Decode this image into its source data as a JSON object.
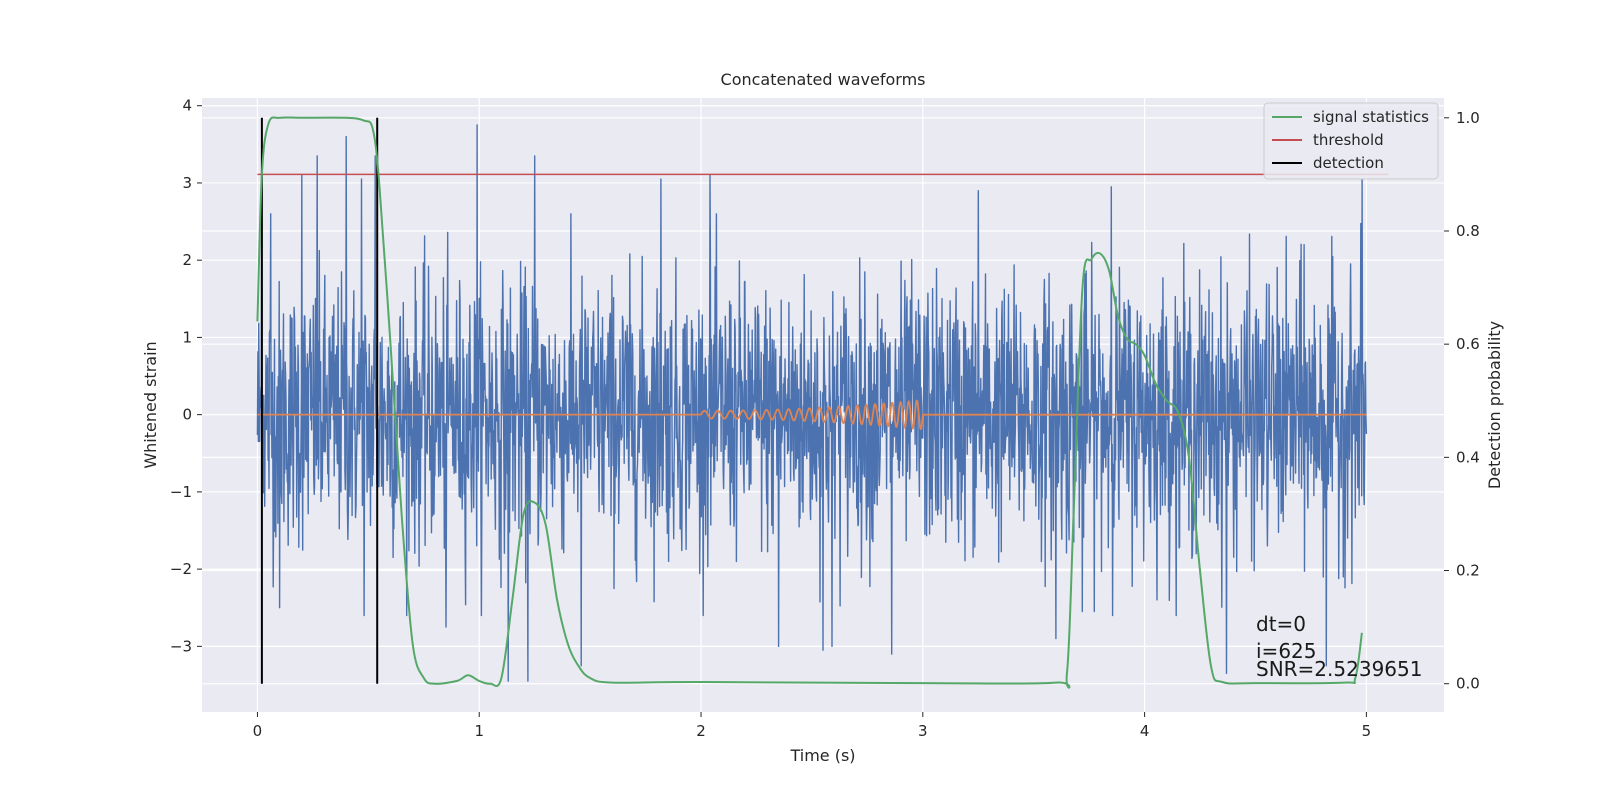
{
  "chart_data": {
    "type": "line",
    "title": "Concatenated waveforms",
    "xlabel": "Time (s)",
    "ylabel": "Whitened strain",
    "ylabel_right": "Detection probability",
    "xlim": [
      -0.25,
      5.35
    ],
    "ylim": [
      -3.85,
      4.1
    ],
    "ylim_right": [
      -0.05,
      1.035
    ],
    "x_ticks": [
      0,
      1,
      2,
      3,
      4,
      5
    ],
    "y_ticks": [
      -3,
      -2,
      -1,
      0,
      1,
      2,
      3,
      4
    ],
    "y_ticks_right": [
      0.0,
      0.2,
      0.4,
      0.6,
      0.8,
      1.0
    ],
    "x_tick_labels": [
      "0",
      "1",
      "2",
      "3",
      "4",
      "5"
    ],
    "y_tick_labels": [
      "−3",
      "−2",
      "−1",
      "0",
      "1",
      "2",
      "3",
      "4"
    ],
    "y_tick_labels_right": [
      "0.0",
      "0.2",
      "0.4",
      "0.6",
      "0.8",
      "1.0"
    ],
    "grid": true,
    "legend_position": "top-right",
    "legend": [
      "signal statistics",
      "threshold",
      "detection"
    ],
    "colors": {
      "strain": "#4c72b0",
      "template": "#dd8452",
      "signal_statistics": "#55a868",
      "threshold": "#c44e52",
      "detection": "#000000",
      "background": "#eaeaf2",
      "grid": "#ffffff"
    },
    "series": [
      {
        "name": "strain",
        "description_range": {
          "x_start": 0.0,
          "x_end": 5.0,
          "min": -3.45,
          "max": 3.75
        },
        "spikes": [
          [
            0.02,
            2.9
          ],
          [
            0.06,
            2.6
          ],
          [
            0.2,
            3.1
          ],
          [
            0.27,
            3.35
          ],
          [
            0.4,
            3.6
          ],
          [
            0.47,
            3.05
          ],
          [
            0.53,
            3.35
          ],
          [
            0.99,
            3.75
          ],
          [
            1.25,
            3.35
          ],
          [
            1.82,
            3.05
          ],
          [
            2.04,
            3.1
          ],
          [
            3.25,
            2.9
          ],
          [
            3.85,
            2.95
          ],
          [
            4.72,
            2.2
          ],
          [
            4.98,
            3.05
          ],
          [
            0.1,
            -2.5
          ],
          [
            0.48,
            -2.6
          ],
          [
            0.85,
            -2.75
          ],
          [
            1.13,
            -3.45
          ],
          [
            1.22,
            -3.45
          ],
          [
            1.46,
            -3.25
          ],
          [
            2.35,
            -3.0
          ],
          [
            2.55,
            -3.05
          ],
          [
            2.59,
            -3.0
          ],
          [
            2.86,
            -3.1
          ],
          [
            3.6,
            -2.9
          ],
          [
            3.72,
            -2.55
          ],
          [
            4.37,
            -3.35
          ],
          [
            4.82,
            -3.25
          ]
        ]
      },
      {
        "name": "template",
        "x_start": 2.0,
        "x_end": 3.0,
        "amplitude_start": 0.05,
        "amplitude_end": 0.19
      },
      {
        "name": "signal statistics",
        "axis": "right",
        "x": [
          0.0,
          0.02,
          0.05,
          0.1,
          0.2,
          0.4,
          0.48,
          0.52,
          0.55,
          0.6,
          0.65,
          0.7,
          0.75,
          0.8,
          0.9,
          0.95,
          1.0,
          1.05,
          1.1,
          1.15,
          1.2,
          1.25,
          1.3,
          1.35,
          1.4,
          1.45,
          1.5,
          1.6,
          2.0,
          3.0,
          3.6,
          3.65,
          3.68,
          3.72,
          3.76,
          3.8,
          3.84,
          3.88,
          3.92,
          3.96,
          4.0,
          4.05,
          4.1,
          4.15,
          4.2,
          4.25,
          4.3,
          4.35,
          4.5,
          4.9,
          4.95,
          4.98
        ],
        "y": [
          0.64,
          0.9,
          0.99,
          1.0,
          1.0,
          1.0,
          0.995,
          0.98,
          0.88,
          0.6,
          0.3,
          0.07,
          0.01,
          0.0,
          0.005,
          0.015,
          0.005,
          0.0,
          0.01,
          0.15,
          0.3,
          0.32,
          0.28,
          0.15,
          0.07,
          0.03,
          0.01,
          0.002,
          0.003,
          0.001,
          0.002,
          0.02,
          0.3,
          0.7,
          0.75,
          0.76,
          0.73,
          0.65,
          0.61,
          0.6,
          0.58,
          0.53,
          0.5,
          0.48,
          0.4,
          0.2,
          0.03,
          0.003,
          0.001,
          0.002,
          0.01,
          0.09
        ]
      },
      {
        "name": "threshold",
        "axis": "right",
        "x": [
          0.0,
          5.1
        ],
        "y": [
          0.9,
          0.9
        ]
      },
      {
        "name": "detection",
        "axis": "right",
        "x": [
          0.02,
          0.54
        ],
        "y_range": [
          0.0,
          1.0
        ]
      }
    ],
    "annotations": [
      "dt=0",
      "i=625",
      "SNR=2.5239651"
    ]
  }
}
